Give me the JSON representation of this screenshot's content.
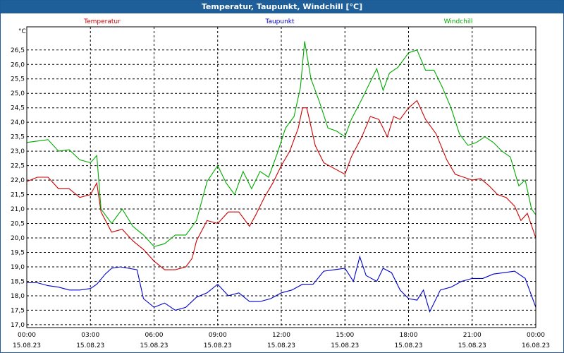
{
  "window": {
    "title": "Temperatur, Taupunkt, Windchill [°C]"
  },
  "chart_data": {
    "type": "line",
    "title": "Temperatur, Taupunkt, Windchill [°C]",
    "ylabel": "°C",
    "ylim": [
      16.9,
      27.3
    ],
    "yticks": [
      "17,0",
      "17,5",
      "18,0",
      "18,5",
      "19,0",
      "19,5",
      "20,0",
      "20,5",
      "21,0",
      "21,5",
      "22,0",
      "22,5",
      "23,0",
      "23,5",
      "24,0",
      "24,5",
      "25,0",
      "25,5",
      "26,0",
      "26,5"
    ],
    "xlim": [
      0,
      24
    ],
    "xticks": [
      {
        "time": "00:00",
        "date": "15.08.23",
        "h": 0
      },
      {
        "time": "03:00",
        "date": "15.08.23",
        "h": 3
      },
      {
        "time": "06:00",
        "date": "15.08.23",
        "h": 6
      },
      {
        "time": "09:00",
        "date": "15.08.23",
        "h": 9
      },
      {
        "time": "12:00",
        "date": "15.08.23",
        "h": 12
      },
      {
        "time": "15:00",
        "date": "15.08.23",
        "h": 15
      },
      {
        "time": "18:00",
        "date": "15.08.23",
        "h": 18
      },
      {
        "time": "21:00",
        "date": "15.08.23",
        "h": 21
      },
      {
        "time": "00:00",
        "date": "16.08.23",
        "h": 24
      }
    ],
    "grid": true,
    "series": [
      {
        "name": "Temperatur",
        "color": "#cc0000",
        "points": [
          [
            0,
            21.95
          ],
          [
            0.5,
            22.1
          ],
          [
            1,
            22.1
          ],
          [
            1.5,
            21.7
          ],
          [
            2,
            21.7
          ],
          [
            2.5,
            21.4
          ],
          [
            3,
            21.5
          ],
          [
            3.3,
            21.9
          ],
          [
            3.5,
            20.9
          ],
          [
            4,
            20.2
          ],
          [
            4.5,
            20.3
          ],
          [
            5,
            19.9
          ],
          [
            5.5,
            19.6
          ],
          [
            6,
            19.2
          ],
          [
            6.5,
            18.9
          ],
          [
            7,
            18.9
          ],
          [
            7.5,
            19.0
          ],
          [
            7.8,
            19.3
          ],
          [
            8,
            19.9
          ],
          [
            8.5,
            20.6
          ],
          [
            9,
            20.5
          ],
          [
            9.5,
            20.9
          ],
          [
            10,
            20.9
          ],
          [
            10.5,
            20.4
          ],
          [
            10.8,
            20.8
          ],
          [
            11.2,
            21.4
          ],
          [
            11.6,
            21.9
          ],
          [
            12,
            22.5
          ],
          [
            12.4,
            23.0
          ],
          [
            12.8,
            23.8
          ],
          [
            13,
            24.5
          ],
          [
            13.2,
            24.5
          ],
          [
            13.6,
            23.2
          ],
          [
            14,
            22.6
          ],
          [
            14.5,
            22.4
          ],
          [
            15,
            22.2
          ],
          [
            15.3,
            22.8
          ],
          [
            15.8,
            23.5
          ],
          [
            16.2,
            24.2
          ],
          [
            16.6,
            24.1
          ],
          [
            17,
            23.5
          ],
          [
            17.3,
            24.2
          ],
          [
            17.6,
            24.1
          ],
          [
            18,
            24.5
          ],
          [
            18.4,
            24.75
          ],
          [
            18.8,
            24.1
          ],
          [
            19.3,
            23.6
          ],
          [
            19.8,
            22.7
          ],
          [
            20.2,
            22.2
          ],
          [
            20.6,
            22.1
          ],
          [
            21,
            22.0
          ],
          [
            21.4,
            22.05
          ],
          [
            21.8,
            21.8
          ],
          [
            22.2,
            21.5
          ],
          [
            22.6,
            21.4
          ],
          [
            23,
            21.1
          ],
          [
            23.3,
            20.6
          ],
          [
            23.6,
            20.85
          ],
          [
            24,
            20.0
          ]
        ]
      },
      {
        "name": "Taupunkt",
        "color": "#0000cc",
        "points": [
          [
            0,
            18.45
          ],
          [
            0.5,
            18.45
          ],
          [
            1,
            18.35
          ],
          [
            1.5,
            18.3
          ],
          [
            2,
            18.2
          ],
          [
            2.5,
            18.2
          ],
          [
            3,
            18.25
          ],
          [
            3.3,
            18.4
          ],
          [
            3.7,
            18.75
          ],
          [
            4,
            18.95
          ],
          [
            4.4,
            19.0
          ],
          [
            4.8,
            18.95
          ],
          [
            5.2,
            18.9
          ],
          [
            5.5,
            17.9
          ],
          [
            6,
            17.6
          ],
          [
            6.5,
            17.75
          ],
          [
            7,
            17.5
          ],
          [
            7.5,
            17.6
          ],
          [
            8,
            17.95
          ],
          [
            8.5,
            18.1
          ],
          [
            9,
            18.4
          ],
          [
            9.5,
            18.0
          ],
          [
            10,
            18.1
          ],
          [
            10.5,
            17.8
          ],
          [
            11,
            17.8
          ],
          [
            11.5,
            17.9
          ],
          [
            12,
            18.1
          ],
          [
            12.5,
            18.2
          ],
          [
            13,
            18.4
          ],
          [
            13.5,
            18.4
          ],
          [
            14,
            18.85
          ],
          [
            14.5,
            18.9
          ],
          [
            15,
            18.95
          ],
          [
            15.4,
            18.5
          ],
          [
            15.7,
            19.35
          ],
          [
            16,
            18.7
          ],
          [
            16.5,
            18.5
          ],
          [
            16.8,
            18.95
          ],
          [
            17.2,
            18.8
          ],
          [
            17.6,
            18.2
          ],
          [
            18,
            17.9
          ],
          [
            18.4,
            17.85
          ],
          [
            18.7,
            18.2
          ],
          [
            19,
            17.45
          ],
          [
            19.5,
            18.2
          ],
          [
            20,
            18.3
          ],
          [
            20.5,
            18.5
          ],
          [
            21,
            18.6
          ],
          [
            21.5,
            18.6
          ],
          [
            22,
            18.75
          ],
          [
            22.5,
            18.8
          ],
          [
            23,
            18.85
          ],
          [
            23.5,
            18.6
          ],
          [
            24,
            17.6
          ]
        ]
      },
      {
        "name": "Windchill",
        "color": "#00aa00",
        "points": [
          [
            0,
            23.3
          ],
          [
            0.5,
            23.35
          ],
          [
            1,
            23.4
          ],
          [
            1.5,
            23.0
          ],
          [
            2,
            23.05
          ],
          [
            2.5,
            22.7
          ],
          [
            3,
            22.6
          ],
          [
            3.3,
            22.85
          ],
          [
            3.5,
            21.0
          ],
          [
            4,
            20.5
          ],
          [
            4.5,
            21.0
          ],
          [
            5,
            20.4
          ],
          [
            5.5,
            20.1
          ],
          [
            6,
            19.7
          ],
          [
            6.5,
            19.8
          ],
          [
            7,
            20.1
          ],
          [
            7.5,
            20.1
          ],
          [
            8,
            20.6
          ],
          [
            8.5,
            21.95
          ],
          [
            9,
            22.5
          ],
          [
            9.4,
            21.9
          ],
          [
            9.8,
            21.5
          ],
          [
            10.2,
            22.3
          ],
          [
            10.6,
            21.7
          ],
          [
            11,
            22.3
          ],
          [
            11.4,
            22.1
          ],
          [
            11.8,
            22.9
          ],
          [
            12.2,
            23.8
          ],
          [
            12.6,
            24.2
          ],
          [
            12.9,
            25.2
          ],
          [
            13.1,
            26.8
          ],
          [
            13.4,
            25.5
          ],
          [
            13.8,
            24.7
          ],
          [
            14.2,
            23.8
          ],
          [
            14.6,
            23.7
          ],
          [
            15,
            23.5
          ],
          [
            15.3,
            24.1
          ],
          [
            15.8,
            24.8
          ],
          [
            16.2,
            25.4
          ],
          [
            16.5,
            25.85
          ],
          [
            16.8,
            25.1
          ],
          [
            17.1,
            25.7
          ],
          [
            17.5,
            25.9
          ],
          [
            18,
            26.4
          ],
          [
            18.4,
            26.5
          ],
          [
            18.8,
            25.8
          ],
          [
            19.2,
            25.8
          ],
          [
            19.6,
            25.2
          ],
          [
            20,
            24.5
          ],
          [
            20.4,
            23.6
          ],
          [
            20.8,
            23.2
          ],
          [
            21.2,
            23.3
          ],
          [
            21.6,
            23.5
          ],
          [
            22,
            23.3
          ],
          [
            22.4,
            23.0
          ],
          [
            22.8,
            22.8
          ],
          [
            23.2,
            21.8
          ],
          [
            23.5,
            22.0
          ],
          [
            23.8,
            21.0
          ],
          [
            24,
            20.8
          ]
        ]
      }
    ]
  }
}
